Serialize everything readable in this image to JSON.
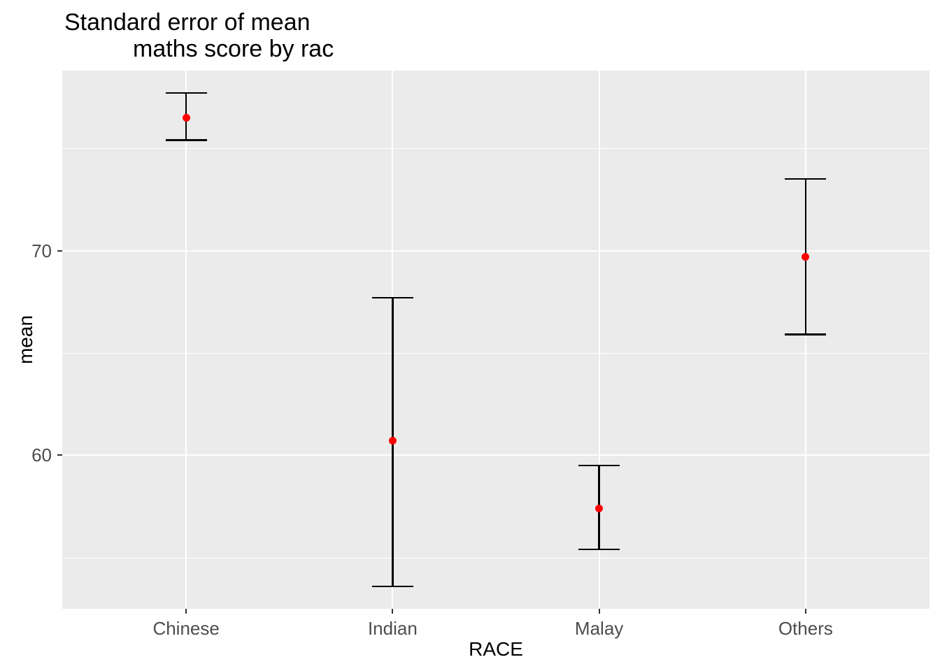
{
  "title": {
    "line1": "Standard error of mean",
    "line2": "maths score by rac"
  },
  "axes": {
    "x_title": "RACE",
    "y_title": "mean"
  },
  "colors": {
    "panel_background": "#EBEBEB",
    "gridline": "#FFFFFF",
    "errorbar": "#000000",
    "point": "#FF0000",
    "tick_label": "#4D4D4D",
    "tick_mark": "#333333",
    "axis_title": "#000000",
    "title": "#000000"
  },
  "chart_data": {
    "type": "scatter",
    "subtype": "pointrange-errorbar",
    "title": "Standard error of mean maths score by rac",
    "xlabel": "RACE",
    "ylabel": "mean",
    "categories": [
      "Chinese",
      "Indian",
      "Malay",
      "Others"
    ],
    "series": [
      {
        "name": "mean maths score",
        "means": [
          76.5,
          60.7,
          57.4,
          69.7
        ],
        "lower": [
          75.4,
          53.6,
          55.4,
          65.9
        ],
        "upper": [
          77.7,
          67.7,
          59.5,
          73.5
        ]
      }
    ],
    "ylim": [
      52.5,
      78.8
    ],
    "y_major_ticks": [
      60,
      70
    ],
    "y_minor_gridlines": [
      55,
      65,
      75
    ],
    "grid": "white major and minor horizontal lines plus major vertical lines on grey panel",
    "legend": "none",
    "point_color": "#FF0000",
    "errorbar_color": "#000000"
  }
}
